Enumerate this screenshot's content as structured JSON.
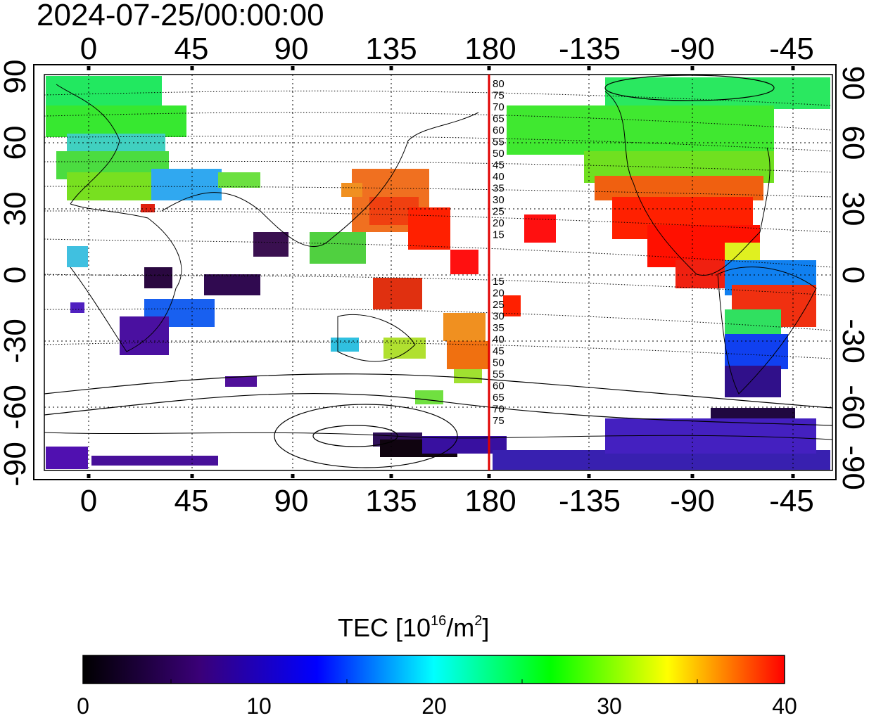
{
  "title": "2024-07-25/00:00:00",
  "lon_ticks": [
    "0",
    "45",
    "90",
    "135",
    "180",
    "-135",
    "-90",
    "-45"
  ],
  "lat_ticks": [
    "90",
    "60",
    "30",
    "0",
    "-30",
    "-60",
    "-90"
  ],
  "dip_labels": [
    "80",
    "75",
    "70",
    "65",
    "60",
    "55",
    "50",
    "45",
    "40",
    "35",
    "30",
    "25",
    "20",
    "15",
    "15",
    "20",
    "25",
    "30",
    "35",
    "40",
    "45",
    "50",
    "55",
    "60",
    "65",
    "70",
    "75"
  ],
  "colorbar": {
    "label_main": "TEC  [10",
    "label_sup1": "16",
    "label_mid": "/m",
    "label_sup2": "2",
    "label_end": "]",
    "ticks": [
      "0",
      "10",
      "20",
      "30",
      "40"
    ],
    "min": 0,
    "max": 40,
    "colors": [
      "#000000",
      "#3a0078",
      "#0000ff",
      "#00ffff",
      "#00ff00",
      "#ffff00",
      "#ff0000"
    ]
  },
  "terminator_color": "#e00000",
  "terminator_lon": 180,
  "map_extent": {
    "lon_min": -20,
    "lon_max": 340,
    "lat_min": -90,
    "lat_max": 90
  }
}
